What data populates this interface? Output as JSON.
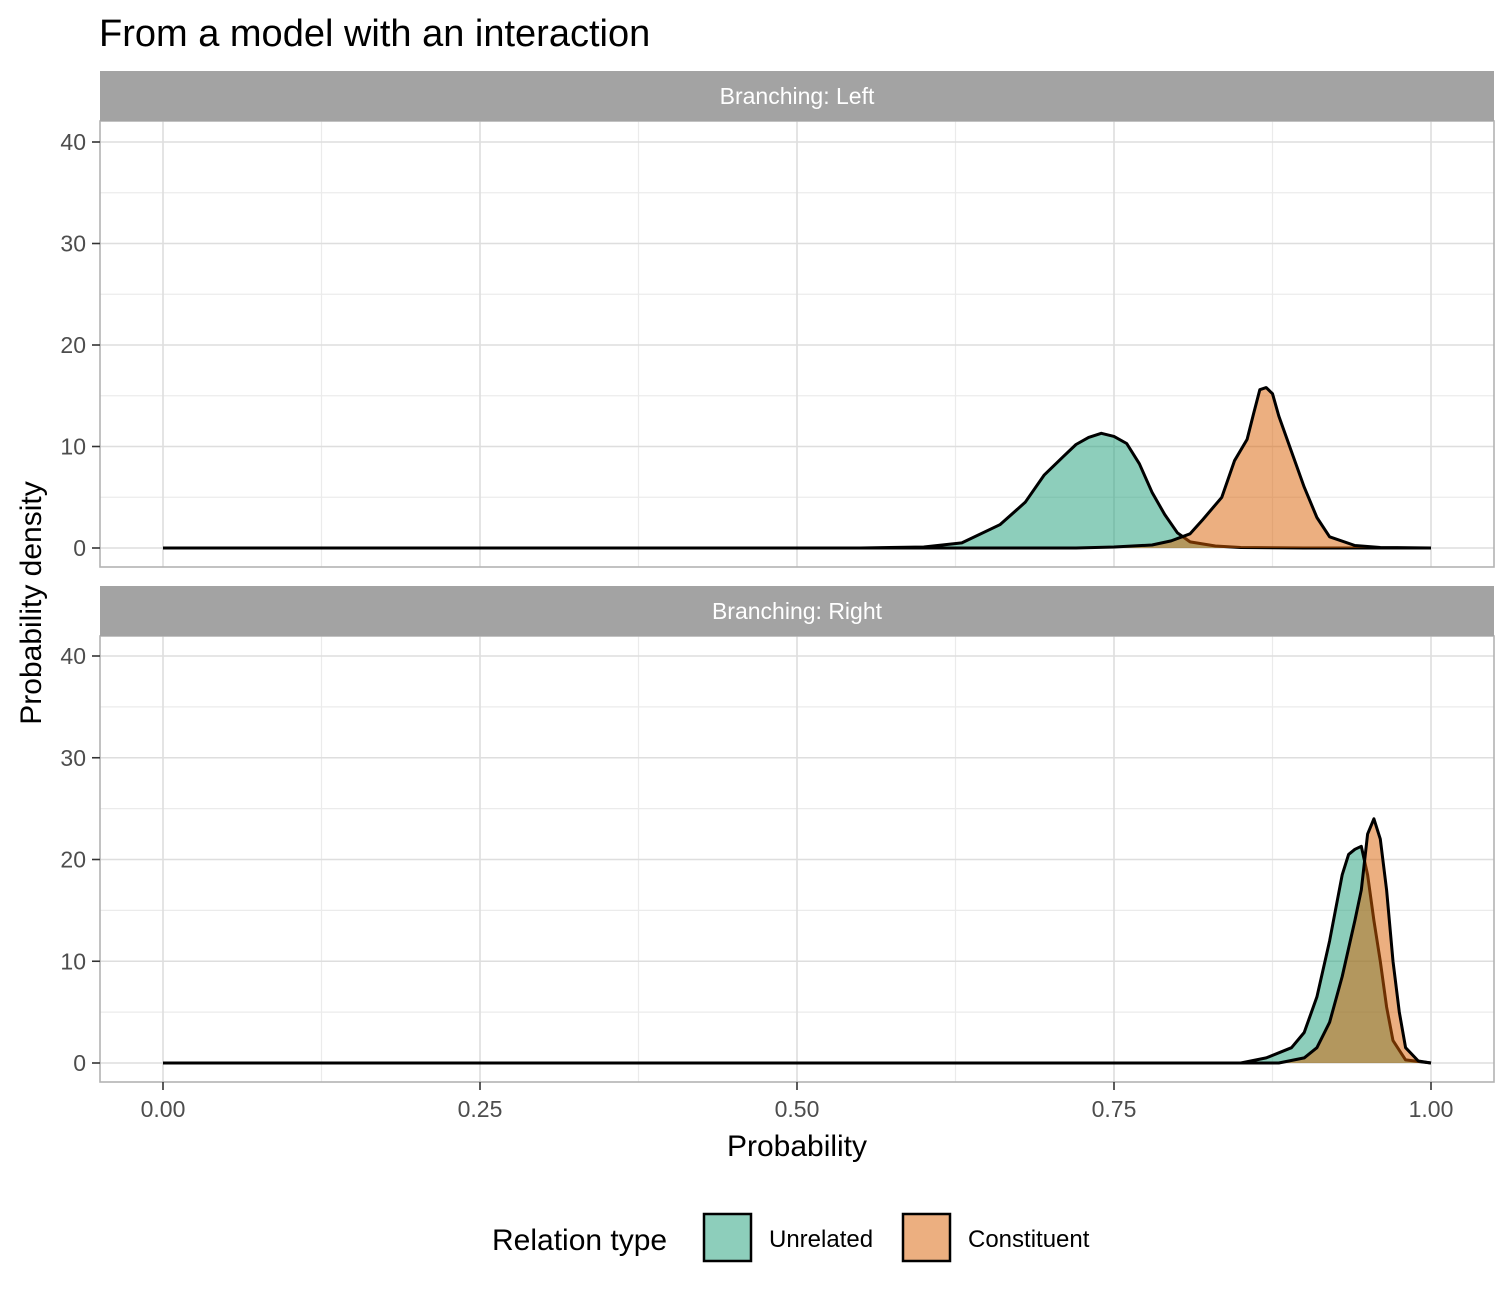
{
  "chart_data": {
    "type": "area",
    "title": "From a model with an interaction",
    "xlabel": "Probability",
    "ylabel": "Probability density",
    "xlim": [
      0,
      1
    ],
    "ylim": [
      0,
      40
    ],
    "x_ticks": [
      0,
      0.25,
      0.5,
      0.75,
      1
    ],
    "x_tick_labels": [
      "0.00",
      "0.25",
      "0.50",
      "0.75",
      "1.00"
    ],
    "y_ticks": [
      0,
      10,
      20,
      30,
      40
    ],
    "y_tick_labels": [
      "0",
      "10",
      "20",
      "30",
      "40"
    ],
    "grid": true,
    "legend": {
      "title": "Relation type",
      "position": "bottom",
      "entries": [
        {
          "label": "Unrelated",
          "color": "#1b9e77"
        },
        {
          "label": "Constituent",
          "color": "#d95f02"
        }
      ]
    },
    "fill_opacity": 0.5,
    "facets": [
      {
        "label": "Branching: Left",
        "series": [
          {
            "name": "Unrelated",
            "color": "#1b9e77",
            "x": [
              0.0,
              0.55,
              0.6,
              0.63,
              0.66,
              0.68,
              0.695,
              0.71,
              0.72,
              0.73,
              0.74,
              0.75,
              0.76,
              0.77,
              0.78,
              0.79,
              0.8,
              0.81,
              0.83,
              0.85,
              0.9,
              1.0
            ],
            "y": [
              0,
              0,
              0.1,
              0.5,
              2.3,
              4.5,
              7.2,
              9.0,
              10.2,
              10.9,
              11.3,
              11.0,
              10.3,
              8.3,
              5.5,
              3.3,
              1.5,
              0.6,
              0.2,
              0.05,
              0,
              0
            ]
          },
          {
            "name": "Constituent",
            "color": "#d95f02",
            "x": [
              0.0,
              0.72,
              0.75,
              0.78,
              0.795,
              0.81,
              0.82,
              0.835,
              0.845,
              0.855,
              0.86,
              0.865,
              0.87,
              0.875,
              0.88,
              0.89,
              0.9,
              0.91,
              0.92,
              0.94,
              0.96,
              1.0
            ],
            "y": [
              0,
              0,
              0.1,
              0.3,
              0.7,
              1.4,
              2.8,
              5.0,
              8.6,
              10.7,
              13.2,
              15.6,
              15.8,
              15.2,
              13.0,
              9.5,
              6.0,
              3.0,
              1.1,
              0.25,
              0.05,
              0
            ]
          }
        ]
      },
      {
        "label": "Branching: Right",
        "series": [
          {
            "name": "Unrelated",
            "color": "#1b9e77",
            "x": [
              0.0,
              0.85,
              0.87,
              0.89,
              0.9,
              0.91,
              0.92,
              0.93,
              0.935,
              0.94,
              0.945,
              0.95,
              0.955,
              0.96,
              0.965,
              0.97,
              0.98,
              1.0
            ],
            "y": [
              0,
              0,
              0.5,
              1.5,
              3.0,
              6.5,
              12.0,
              18.5,
              20.5,
              21.0,
              21.3,
              18.5,
              14.0,
              10.0,
              5.5,
              2.2,
              0.3,
              0
            ]
          },
          {
            "name": "Constituent",
            "color": "#d95f02",
            "x": [
              0.0,
              0.88,
              0.9,
              0.91,
              0.92,
              0.93,
              0.94,
              0.945,
              0.95,
              0.955,
              0.96,
              0.965,
              0.97,
              0.975,
              0.98,
              0.99,
              1.0
            ],
            "y": [
              0,
              0,
              0.5,
              1.5,
              4.0,
              8.5,
              14.0,
              17.0,
              22.5,
              24.0,
              22.0,
              17.0,
              10.0,
              5.0,
              1.5,
              0.2,
              0
            ]
          }
        ]
      }
    ]
  }
}
